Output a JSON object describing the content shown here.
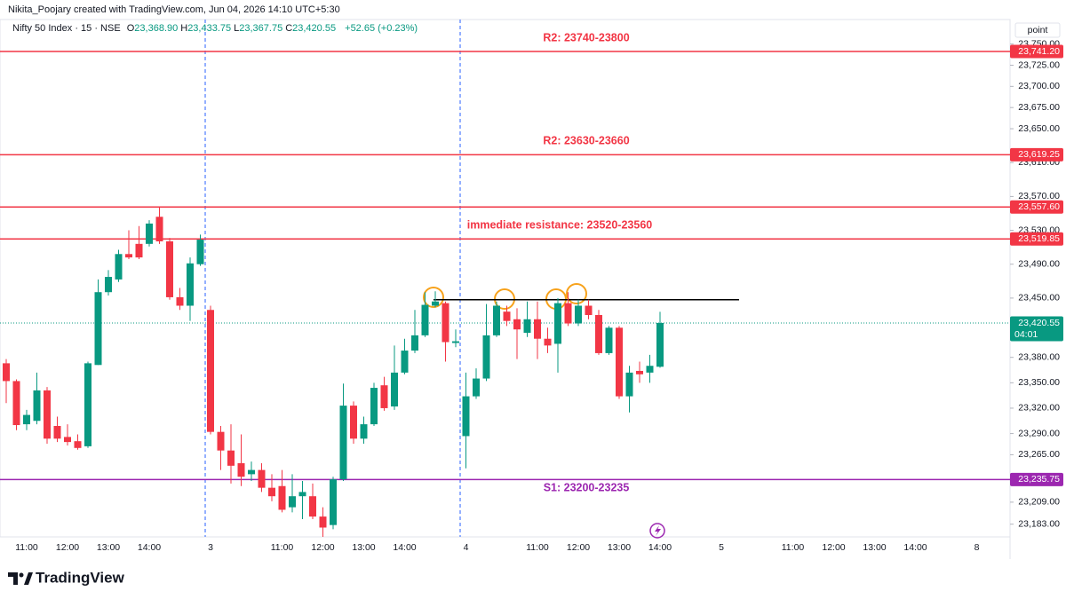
{
  "header": {
    "credit": "Nikita_Poojary created with TradingView.com, Jun 04, 2026 14:10 UTC+5:30",
    "symbol": "Nifty 50 Index · 15 · NSE",
    "ohlc": [
      {
        "key": "O",
        "value": "23,368.90"
      },
      {
        "key": "H",
        "value": "23,433.75"
      },
      {
        "key": "L",
        "value": "23,367.75"
      },
      {
        "key": "C",
        "value": "23,420.55"
      }
    ],
    "change": "+52.65 (+0.23%)"
  },
  "scale_mode": "point",
  "brand": "TradingView",
  "chart_data": {
    "type": "candlestick",
    "categories": [
      null,
      null,
      "11:00",
      null,
      null,
      null,
      "12:00",
      null,
      null,
      null,
      "13:00",
      null,
      null,
      null,
      "14:00",
      null,
      null,
      null,
      null,
      null,
      "3",
      null,
      null,
      null,
      null,
      null,
      null,
      "11:00",
      null,
      null,
      null,
      "12:00",
      null,
      null,
      null,
      "13:00",
      null,
      null,
      null,
      "14:00",
      null,
      null,
      null,
      null,
      null,
      "4",
      null,
      null,
      null,
      null,
      null,
      null,
      "11:00",
      null,
      null,
      null,
      "12:00",
      null,
      null,
      null,
      "13:00",
      null,
      null,
      null,
      "14:00",
      null,
      null,
      null,
      null,
      null,
      "5",
      null,
      null,
      null,
      null,
      null,
      null,
      "11:00",
      null,
      null,
      null,
      "12:00",
      null,
      null,
      null,
      "13:00",
      null,
      null,
      null,
      "14:00",
      null,
      null,
      null,
      null,
      null,
      "8"
    ],
    "open": [
      23373,
      23352,
      23301,
      23305,
      23341,
      23299,
      23286,
      23281,
      23275,
      23371,
      23457,
      23472,
      23502,
      23514,
      23514,
      23546,
      23517,
      23451,
      23441,
      23490,
      23436,
      23292,
      23270,
      23255,
      23242,
      23247,
      23226,
      23228,
      23203,
      23216,
      23216,
      23192,
      23182,
      23236,
      23323,
      23284,
      23301,
      23347,
      23322,
      23362,
      23388,
      23406,
      23441,
      23444,
      23397,
      23287,
      23334,
      23355,
      23406,
      23434,
      23425,
      23409,
      23425,
      23402,
      23396,
      23444,
      23420,
      23441,
      23430,
      23385,
      23415,
      23334,
      23364,
      23362,
      23368.9,
      null,
      null,
      null,
      null,
      null,
      null,
      null,
      null,
      null,
      null,
      null,
      null,
      null,
      null,
      null,
      null,
      null,
      null,
      null,
      null,
      null,
      null,
      null,
      null,
      null,
      null,
      null,
      null,
      null,
      null,
      null
    ],
    "high": [
      23378,
      23354,
      23318,
      23362,
      23345,
      23310,
      23301,
      23289,
      23375,
      23472,
      23483,
      23507,
      23530,
      23535,
      23542,
      23558,
      23521,
      23462,
      23498,
      23525,
      23441,
      23299,
      23301,
      23289,
      23257,
      23255,
      23242,
      23247,
      23242,
      23234,
      23231,
      23203,
      23239,
      23349,
      23328,
      23310,
      23350,
      23357,
      23394,
      23402,
      23436,
      23457,
      23458,
      23446,
      23413,
      23362,
      23367,
      23443,
      23446,
      23441,
      23438,
      23446,
      23446,
      23415,
      23450,
      23457,
      23448,
      23448,
      23436,
      23417,
      23417,
      23370,
      23375,
      23383,
      23433.75,
      null,
      null,
      null,
      null,
      null,
      null,
      null,
      null,
      null,
      null,
      null,
      null,
      null,
      null,
      null,
      null,
      null,
      null,
      null,
      null,
      null,
      null,
      null,
      null,
      null,
      null,
      null,
      null,
      null,
      null,
      null
    ],
    "low": [
      23326,
      23294,
      23294,
      23301,
      23278,
      23280,
      23276,
      23271,
      23273,
      23371,
      23453,
      23469,
      23496,
      23496,
      23511,
      23514,
      23448,
      23436,
      23423,
      23488,
      23289,
      23247,
      23231,
      23228,
      23234,
      23221,
      23210,
      23197,
      23197,
      23189,
      23189,
      23168,
      23177,
      23234,
      23278,
      23278,
      23299,
      23317,
      23318,
      23360,
      23385,
      23404,
      23439,
      23375,
      23392,
      23249,
      23331,
      23352,
      23404,
      23417,
      23378,
      23404,
      23378,
      23385,
      23362,
      23417,
      23417,
      23425,
      23383,
      23383,
      23331,
      23315,
      23350,
      23350,
      23367.75,
      null,
      null,
      null,
      null,
      null,
      null,
      null,
      null,
      null,
      null,
      null,
      null,
      null,
      null,
      null,
      null,
      null,
      null,
      null,
      null,
      null,
      null,
      null,
      null,
      null,
      null,
      null,
      null,
      null,
      null,
      null
    ],
    "close": [
      23352,
      23300,
      23312,
      23341,
      23284,
      23284,
      23280,
      23273,
      23373,
      23457,
      23475,
      23502,
      23498,
      23498,
      23538,
      23517,
      23451,
      23441,
      23491,
      23519,
      23292,
      23270,
      23252,
      23239,
      23247,
      23226,
      23216,
      23200,
      23216,
      23221,
      23192,
      23179,
      23236,
      23323,
      23284,
      23301,
      23344,
      23320,
      23362,
      23388,
      23406,
      23442,
      23446,
      23398,
      23399,
      23334,
      23355,
      23406,
      23441,
      23423,
      23413,
      23425,
      23402,
      23394,
      23444,
      23420,
      23441,
      23430,
      23385,
      23415,
      23334,
      23362,
      23360,
      23370,
      23420.55,
      null,
      null,
      null,
      null,
      null,
      null,
      null,
      null,
      null,
      null,
      null,
      null,
      null,
      null,
      null,
      null,
      null,
      null,
      null,
      null,
      null,
      null,
      null,
      null,
      null,
      null,
      null,
      null,
      null,
      null,
      null
    ],
    "up_color": "#089981",
    "down_color": "#f23645",
    "ylim": [
      23168,
      23802
    ],
    "yticks": [
      {
        "value": 23750,
        "label": "23,750.00"
      },
      {
        "value": 23725,
        "label": "23,725.00"
      },
      {
        "value": 23700,
        "label": "23,700.00"
      },
      {
        "value": 23675,
        "label": "23,675.00"
      },
      {
        "value": 23650,
        "label": "23,650.00"
      },
      {
        "value": 23610,
        "label": "23,610.00"
      },
      {
        "value": 23570,
        "label": "23,570.00"
      },
      {
        "value": 23530,
        "label": "23,530.00"
      },
      {
        "value": 23490,
        "label": "23,490.00"
      },
      {
        "value": 23450,
        "label": "23,450.00"
      },
      {
        "value": 23380,
        "label": "23,380.00"
      },
      {
        "value": 23350,
        "label": "23,350.00"
      },
      {
        "value": 23320,
        "label": "23,320.00"
      },
      {
        "value": 23290,
        "label": "23,290.00"
      },
      {
        "value": 23265,
        "label": "23,265.00"
      },
      {
        "value": 23209,
        "label": "23,209.00"
      },
      {
        "value": 23183,
        "label": "23,183.00"
      }
    ],
    "levels": [
      {
        "value": 23741.2,
        "label": "23,741.20",
        "color": "#f23645",
        "note": "R2: 23740-23800"
      },
      {
        "value": 23619.25,
        "label": "23,619.25",
        "color": "#f23645",
        "note": "R2: 23630-23660"
      },
      {
        "value": 23557.6,
        "label": "23,557.60",
        "color": "#f23645"
      },
      {
        "value": 23519.85,
        "label": "23,519.85",
        "color": "#f23645",
        "note": "immediate resistance: 23520-23560"
      },
      {
        "value": 23235.75,
        "label": "23,235.75",
        "color": "#9c27b0",
        "note": "S1: 23200-23235"
      }
    ],
    "trendline": {
      "value": 23448,
      "color": "#000000"
    },
    "last_price": {
      "value": 23420.55,
      "label": "23,420.55",
      "countdown": "04:01"
    }
  }
}
